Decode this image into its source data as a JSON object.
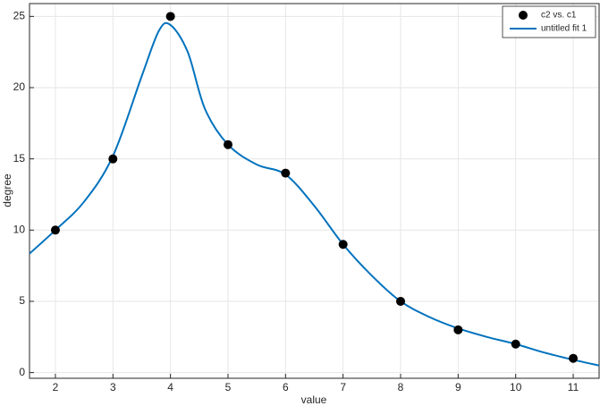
{
  "chart_data": {
    "type": "scatter",
    "x_label": "value",
    "y_label": "degree",
    "xlim": [
      1.55,
      11.45
    ],
    "ylim": [
      -0.4,
      25.9
    ],
    "xticks": [
      2,
      3,
      4,
      5,
      6,
      7,
      8,
      9,
      10,
      11
    ],
    "yticks": [
      0,
      5,
      10,
      15,
      20,
      25
    ],
    "grid": true,
    "legend": "top-right",
    "series": [
      {
        "name": "c2 vs. c1",
        "mode": "markers",
        "color": "#000000",
        "x": [
          2,
          3,
          4,
          5,
          6,
          7,
          8,
          9,
          10,
          11
        ],
        "values": [
          10,
          15,
          25,
          16,
          14,
          9,
          5,
          3,
          2,
          1
        ]
      },
      {
        "name": "untitled fit 1",
        "mode": "line",
        "color": "#0072bd",
        "x": [
          1.55,
          2,
          2.5,
          3,
          3.5,
          3.8,
          4,
          4.3,
          4.6,
          5,
          5.5,
          6,
          6.5,
          7,
          7.5,
          8,
          8.5,
          9,
          9.5,
          10,
          10.5,
          11,
          11.45
        ],
        "values": [
          8.35,
          10,
          12,
          15.2,
          20.8,
          24,
          24.4,
          22.5,
          18.5,
          16,
          14.6,
          13.9,
          11.7,
          9,
          6.8,
          5,
          3.9,
          3.1,
          2.5,
          2,
          1.4,
          0.9,
          0.5
        ]
      }
    ]
  }
}
